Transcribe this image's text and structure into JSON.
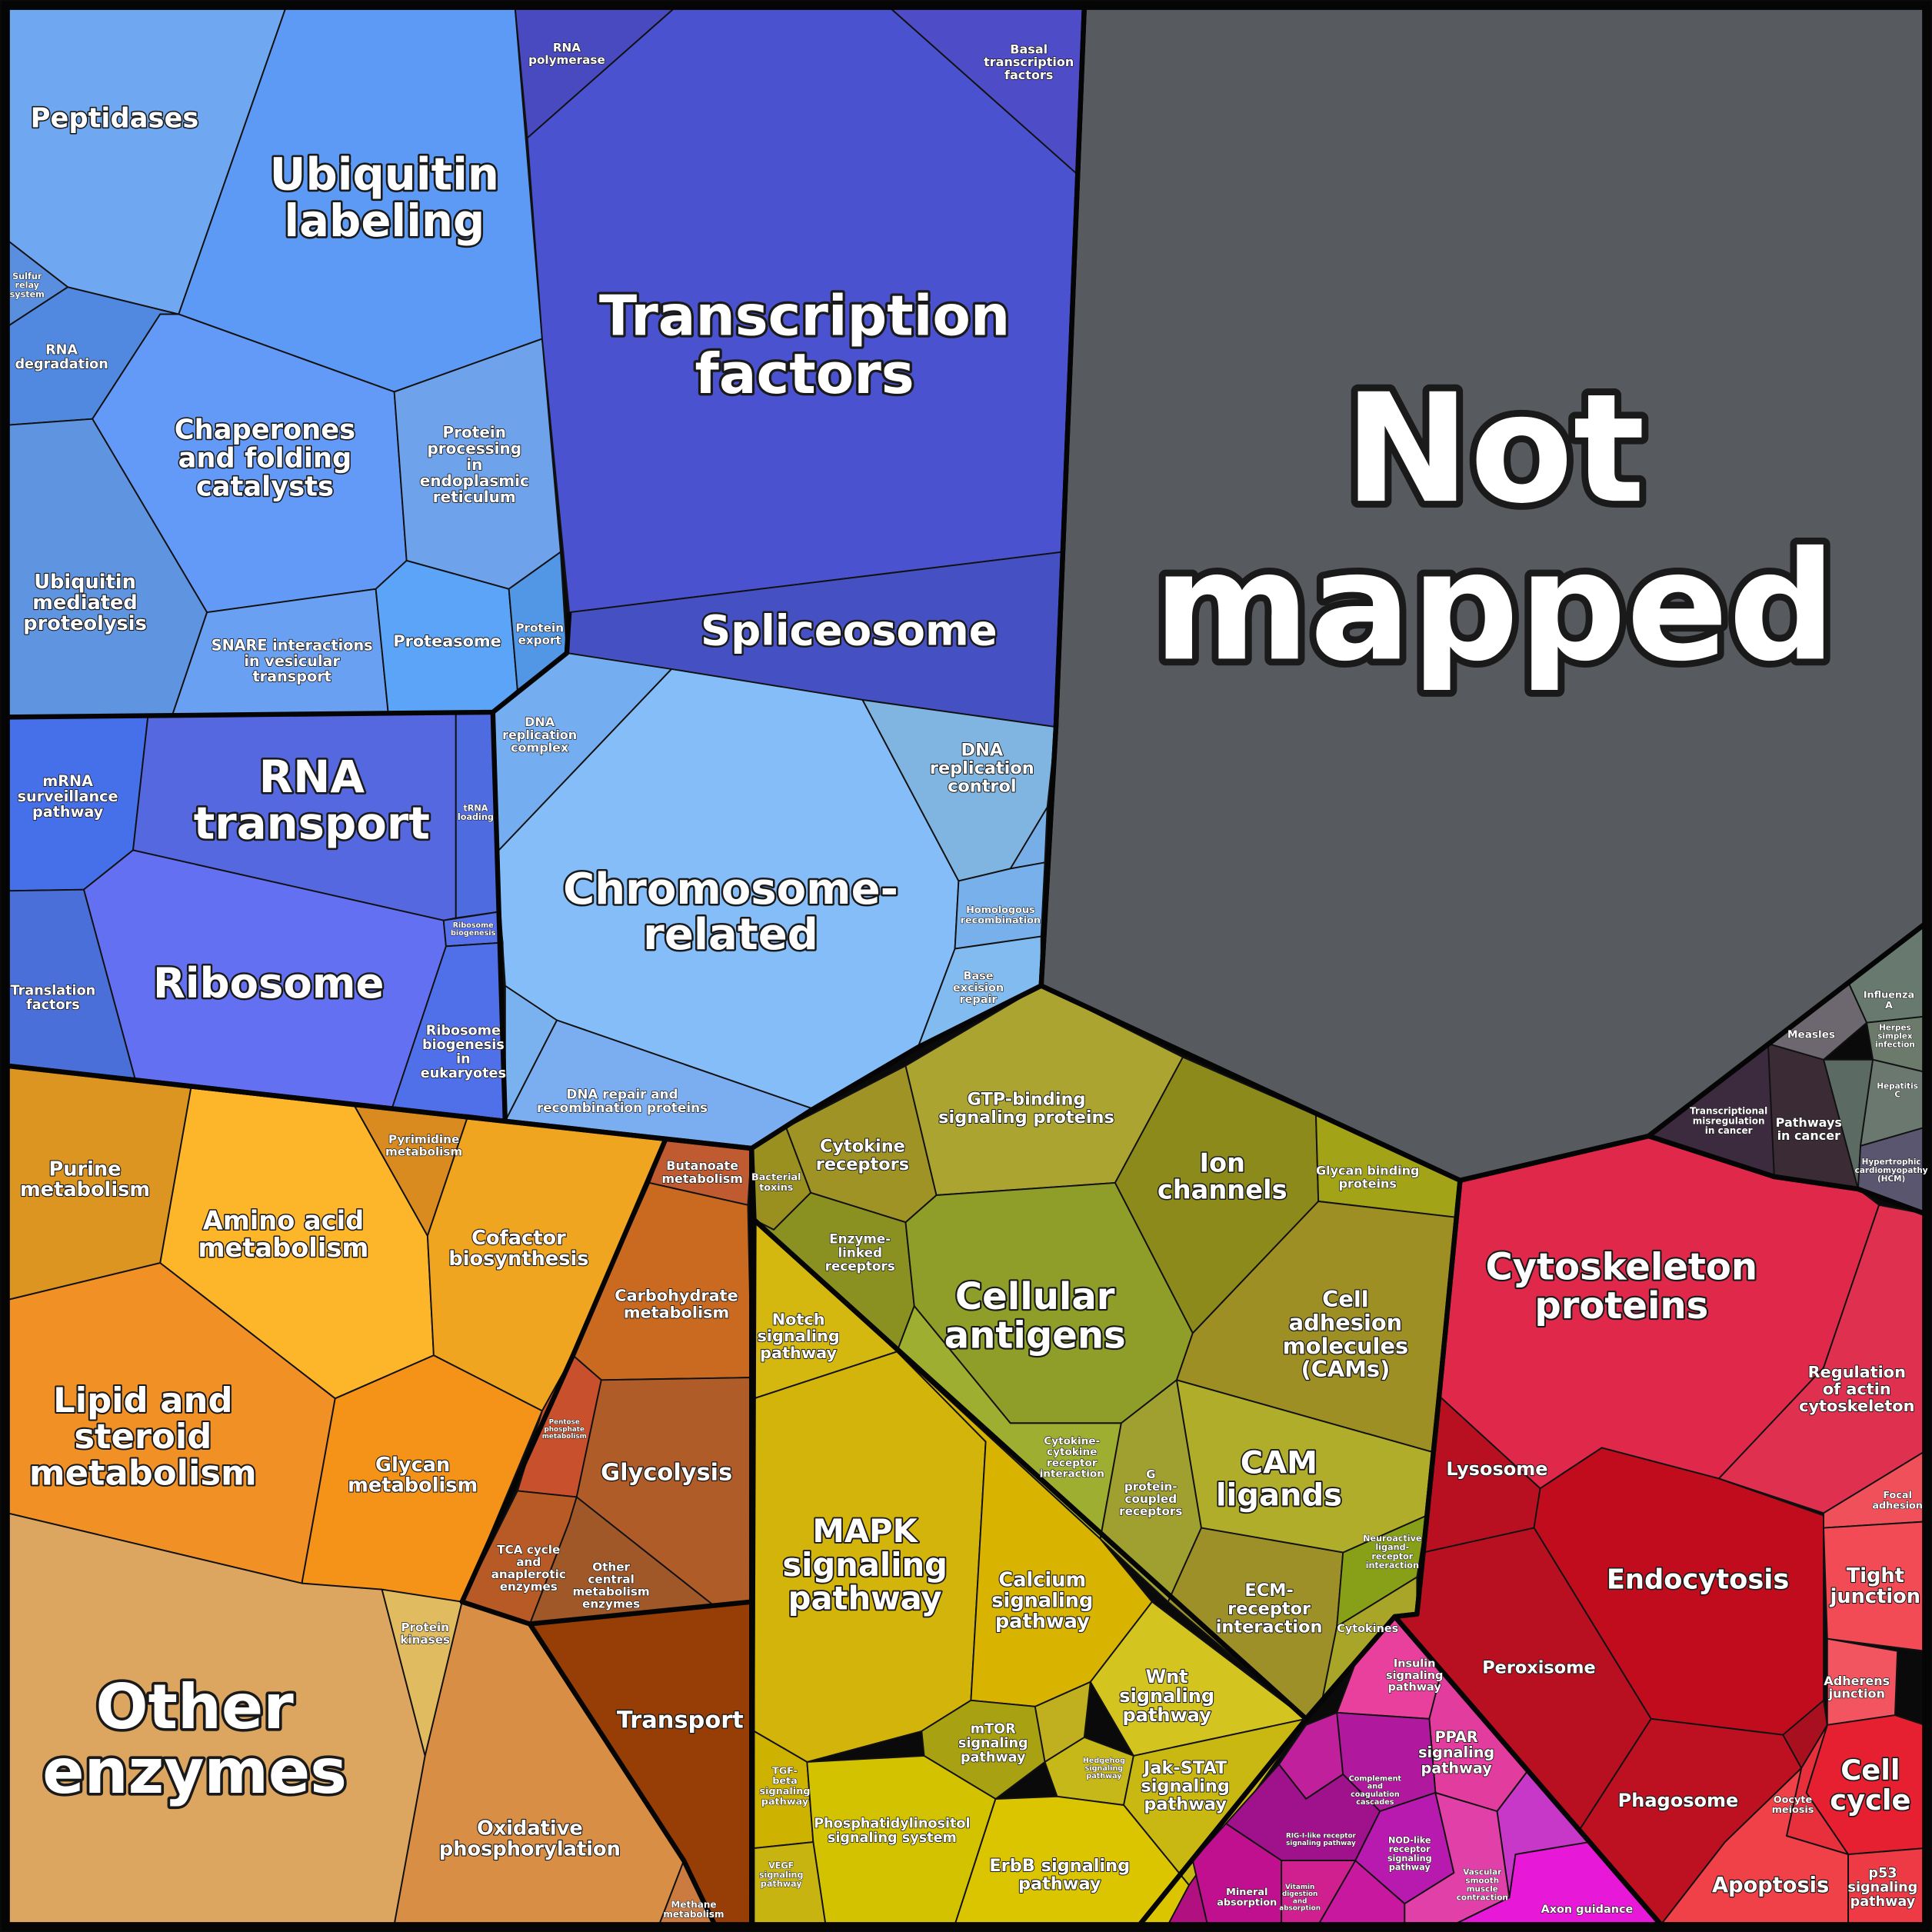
{
  "regions": [
    {
      "label": [
        "Peptidases"
      ]
    },
    {
      "label": [
        "Sulfur",
        "relay",
        "system"
      ]
    },
    {
      "label": [
        "Ubiquitin",
        "labeling"
      ]
    },
    {
      "label": [
        "RNA",
        "degradation"
      ]
    },
    {
      "label": [
        "Chaperones",
        "and folding",
        "catalysts"
      ]
    },
    {
      "label": [
        "Protein",
        "processing",
        "in",
        "endoplasmic",
        "reticulum"
      ]
    },
    {
      "label": [
        "Ubiquitin",
        "mediated",
        "proteolysis"
      ]
    },
    {
      "label": [
        "SNARE interactions",
        "in vesicular",
        "transport"
      ]
    },
    {
      "label": [
        "Proteasome"
      ]
    },
    {
      "label": [
        "Protein",
        "export"
      ]
    },
    {
      "label": [
        "RNA",
        "polymerase"
      ]
    },
    {
      "label": [
        "Transcription",
        "factors"
      ]
    },
    {
      "label": [
        "Basal",
        "transcription",
        "factors"
      ]
    },
    {
      "label": [
        "Spliceosome"
      ]
    },
    {
      "label": [
        "DNA",
        "replication",
        "complex"
      ]
    },
    {
      "label": [
        "Chromosome-",
        "related"
      ]
    },
    {
      "label": [
        "DNA",
        "replication",
        "control"
      ]
    },
    {
      "label": [
        "Homologous",
        "recombination"
      ]
    },
    {
      "label": [
        "Base",
        "excision",
        "repair"
      ]
    },
    {
      "label": [
        "DNA repair and",
        "recombination proteins"
      ]
    },
    {
      "label": [
        "mRNA",
        "surveillance",
        "pathway"
      ]
    },
    {
      "label": [
        "RNA",
        "transport"
      ]
    },
    {
      "label": [
        "tRNA",
        "loading"
      ]
    },
    {
      "label": [
        "Ribosome"
      ]
    },
    {
      "label": [
        "Ribosome",
        "biogenesis"
      ]
    },
    {
      "label": [
        "Ribosome",
        "biogenesis",
        "in",
        "eukaryotes"
      ]
    },
    {
      "label": [
        "Translation",
        "factors"
      ]
    },
    {
      "label": [
        "Purine",
        "metabolism"
      ]
    },
    {
      "label": [
        "Amino acid",
        "metabolism"
      ]
    },
    {
      "label": [
        "Pyrimidine",
        "metabolism"
      ]
    },
    {
      "label": [
        "Cofactor",
        "biosynthesis"
      ]
    },
    {
      "label": [
        "Butanoate",
        "metabolism"
      ]
    },
    {
      "label": [
        "Carbohydrate",
        "metabolism"
      ]
    },
    {
      "label": [
        "Lipid and",
        "steroid",
        "metabolism"
      ]
    },
    {
      "label": [
        "Glycan",
        "metabolism"
      ]
    },
    {
      "label": [
        "Pentose",
        "phosphate",
        "metabolism"
      ]
    },
    {
      "label": [
        "Glycolysis"
      ]
    },
    {
      "label": [
        "TCA cycle",
        "and",
        "anaplerotic",
        "enzymes"
      ]
    },
    {
      "label": [
        "Other",
        "central",
        "metabolism",
        "enzymes"
      ]
    },
    {
      "label": [
        "Other",
        "enzymes"
      ]
    },
    {
      "label": [
        "Protein",
        "kinases"
      ]
    },
    {
      "label": [
        "Oxidative",
        "phosphorylation"
      ]
    },
    {
      "label": [
        "Transport"
      ]
    },
    {
      "label": [
        "Methane",
        "metabolism"
      ]
    },
    {
      "label": [
        "Bacterial",
        "toxins"
      ]
    },
    {
      "label": [
        "Cytokine",
        "receptors"
      ]
    },
    {
      "label": [
        "GTP-binding",
        "signaling proteins"
      ]
    },
    {
      "label": [
        "Ion",
        "channels"
      ]
    },
    {
      "label": [
        "Glycan binding",
        "proteins"
      ]
    },
    {
      "label": [
        "Enzyme-",
        "linked",
        "receptors"
      ]
    },
    {
      "label": [
        "Cellular",
        "antigens"
      ]
    },
    {
      "label": [
        "Cell",
        "adhesion",
        "molecules",
        "(CAMs)"
      ]
    },
    {
      "label": [
        "Cytokine-",
        "cytokine",
        "receptor",
        "interaction"
      ]
    },
    {
      "label": [
        "G",
        "protein-",
        "coupled",
        "receptors"
      ]
    },
    {
      "label": [
        "CAM",
        "ligands"
      ]
    },
    {
      "label": [
        "ECM-",
        "receptor",
        "interaction"
      ]
    },
    {
      "label": [
        "Neuroactive",
        "ligand-",
        "receptor",
        "interaction"
      ]
    },
    {
      "label": [
        "Cytokines"
      ]
    },
    {
      "label": [
        "Notch",
        "signaling",
        "pathway"
      ]
    },
    {
      "label": [
        "MAPK",
        "signaling",
        "pathway"
      ]
    },
    {
      "label": [
        "Calcium",
        "signaling",
        "pathway"
      ]
    },
    {
      "label": [
        "Wnt",
        "signaling",
        "pathway"
      ]
    },
    {
      "label": [
        "mTOR",
        "signaling",
        "pathway"
      ]
    },
    {
      "label": [
        "Hedgehog",
        "signaling",
        "pathway"
      ]
    },
    {
      "label": [
        "Jak-STAT",
        "signaling",
        "pathway"
      ]
    },
    {
      "label": [
        "TGF-",
        "beta",
        "signaling",
        "pathway"
      ]
    },
    {
      "label": [
        "Phosphatidylinositol",
        "signaling system"
      ]
    },
    {
      "label": [
        "VEGF",
        "signaling",
        "pathway"
      ]
    },
    {
      "label": [
        "ErbB signaling",
        "pathway"
      ]
    },
    {
      "label": [
        "Insulin",
        "signaling",
        "pathway"
      ]
    },
    {
      "label": [
        "PPAR",
        "signaling",
        "pathway"
      ]
    },
    {
      "label": [
        "Complement",
        "and",
        "coagulation",
        "cascades"
      ]
    },
    {
      "label": [
        "RIG-I-like receptor",
        "signaling pathway"
      ]
    },
    {
      "label": [
        "NOD-like",
        "receptor",
        "signaling",
        "pathway"
      ]
    },
    {
      "label": [
        "Mineral",
        "absorption"
      ]
    },
    {
      "label": [
        "Vitamin",
        "digestion",
        "and",
        "absorption"
      ]
    },
    {
      "label": [
        "Vascular",
        "smooth",
        "muscle",
        "contraction"
      ]
    },
    {
      "label": [
        "Axon guidance"
      ]
    },
    {
      "label": [
        "Cytoskeleton",
        "proteins"
      ]
    },
    {
      "label": [
        "Regulation",
        "of actin",
        "cytoskeleton"
      ]
    },
    {
      "label": [
        "Lysosome"
      ]
    },
    {
      "label": [
        "Endocytosis"
      ]
    },
    {
      "label": [
        "Peroxisome"
      ]
    },
    {
      "label": [
        "Phagosome"
      ]
    },
    {
      "label": [
        "Focal",
        "adhesion"
      ]
    },
    {
      "label": [
        "Tight",
        "junction"
      ]
    },
    {
      "label": [
        "Adherens",
        "junction"
      ]
    },
    {
      "label": [
        "Cell",
        "cycle"
      ]
    },
    {
      "label": [
        "Oocyte",
        "meiosis"
      ]
    },
    {
      "label": [
        "Apoptosis"
      ]
    },
    {
      "label": [
        "p53",
        "signaling",
        "pathway"
      ]
    },
    {
      "label": [
        "Transcriptional",
        "misregulation",
        "in cancer"
      ]
    },
    {
      "label": [
        "Pathways",
        "in cancer"
      ]
    },
    {
      "label": [
        "Measles"
      ]
    },
    {
      "label": [
        "Influenza",
        "A"
      ]
    },
    {
      "label": [
        "Herpes",
        "simplex",
        "infection"
      ]
    },
    {
      "label": [
        "Hepatitis",
        "C"
      ]
    },
    {
      "label": [
        "Hypertrophic",
        "cardiomyopathy",
        "(HCM)"
      ]
    },
    {
      "label": [
        "Not",
        "mapped"
      ]
    }
  ]
}
